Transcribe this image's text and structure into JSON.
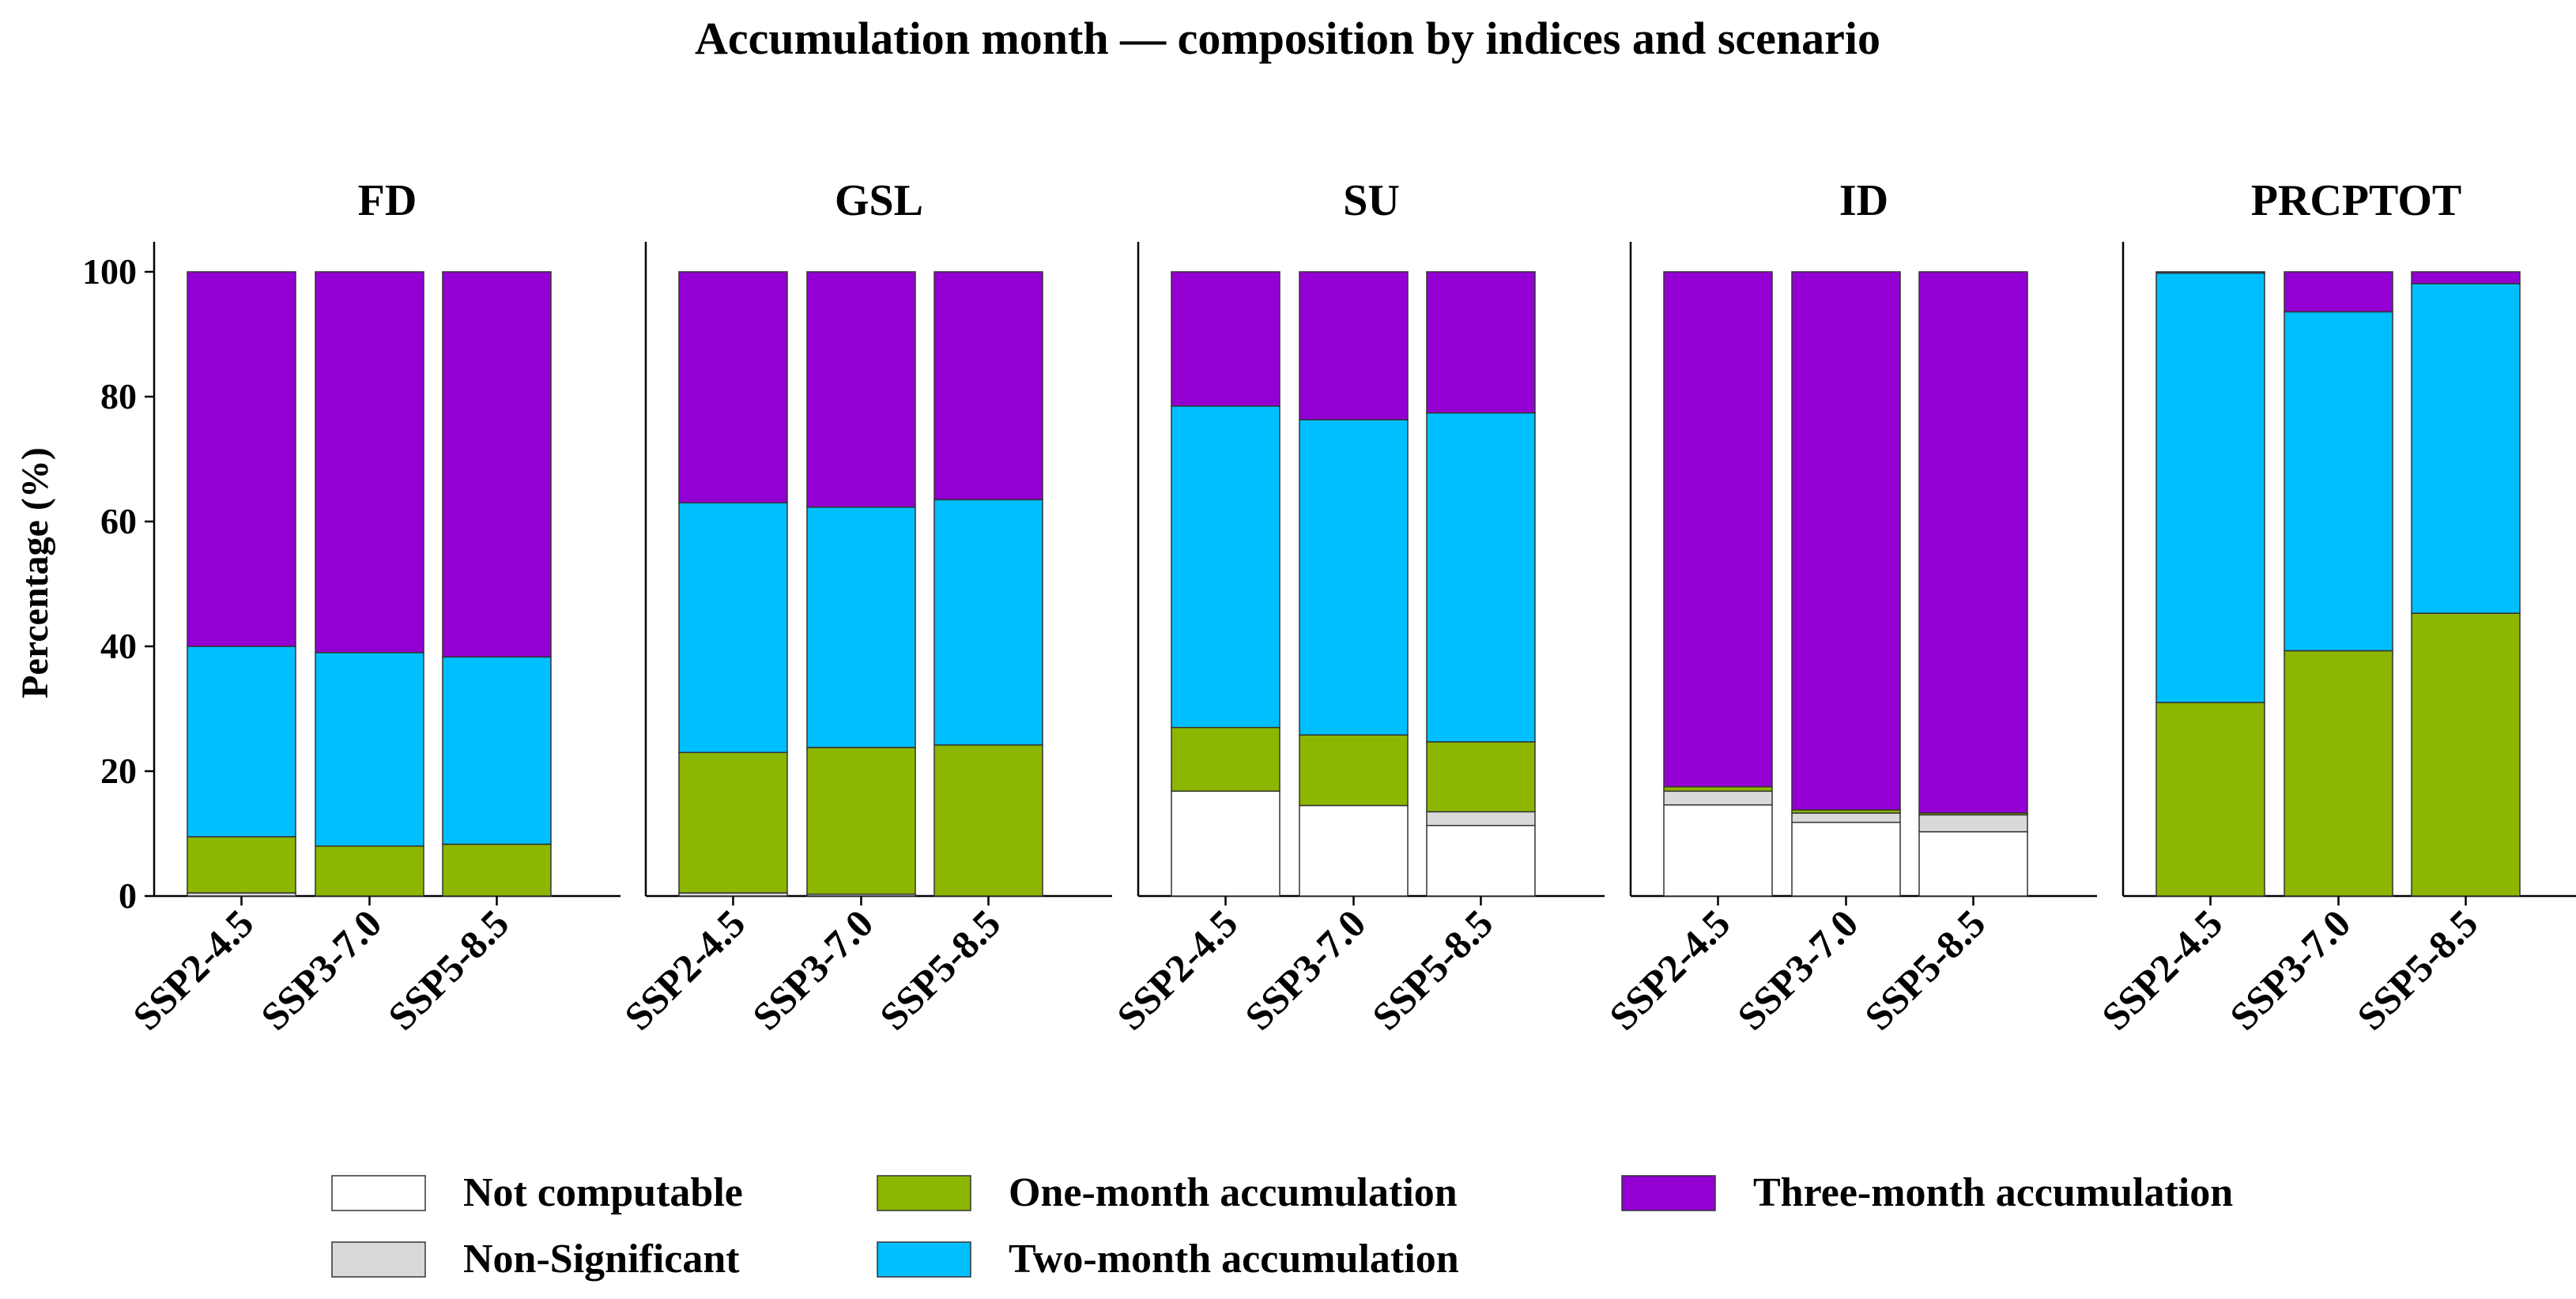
{
  "chart_data": {
    "type": "bar",
    "stacked": true,
    "title": "Accumulation month — composition by indices and scenario",
    "ylabel": "Percentage (%)",
    "ylim": [
      0,
      100
    ],
    "yticks": [
      "0",
      "20",
      "40",
      "60",
      "80",
      "100"
    ],
    "categories": [
      "SSP2-4.5",
      "SSP3-7.0",
      "SSP5-8.5"
    ],
    "legend_position": "bottom",
    "series_meta": [
      {
        "name": "Not computable",
        "color": "#ffffff"
      },
      {
        "name": "Non-Significant",
        "color": "#d9d9d9"
      },
      {
        "name": "One-month accumulation",
        "color": "#8db600"
      },
      {
        "name": "Two-month accumulation",
        "color": "#00bfff"
      },
      {
        "name": "Three-month accumulation",
        "color": "#9400d3"
      }
    ],
    "panels": [
      {
        "title": "FD",
        "values": [
          [
            0.0,
            0.5,
            9.0,
            30.5,
            60.0
          ],
          [
            0.0,
            0.0,
            8.0,
            31.0,
            61.0
          ],
          [
            0.0,
            0.0,
            8.3,
            30.0,
            61.7
          ]
        ]
      },
      {
        "title": "GSL",
        "values": [
          [
            0.0,
            0.5,
            22.5,
            40.0,
            37.0
          ],
          [
            0.0,
            0.3,
            23.5,
            38.5,
            37.7
          ],
          [
            0.0,
            0.0,
            24.2,
            39.3,
            36.5
          ]
        ]
      },
      {
        "title": "SU",
        "values": [
          [
            16.8,
            0.0,
            10.2,
            51.5,
            21.5
          ],
          [
            14.5,
            0.0,
            11.3,
            50.5,
            23.7
          ],
          [
            11.3,
            2.2,
            11.2,
            52.7,
            22.6
          ]
        ]
      },
      {
        "title": "ID",
        "values": [
          [
            14.6,
            2.2,
            0.7,
            0.0,
            82.5
          ],
          [
            11.8,
            1.5,
            0.5,
            0.0,
            86.2
          ],
          [
            10.3,
            2.7,
            0.3,
            0.0,
            86.7
          ]
        ]
      },
      {
        "title": "PRCPTOT",
        "values": [
          [
            0.0,
            0.0,
            31.0,
            68.8,
            0.2
          ],
          [
            0.0,
            0.0,
            39.3,
            54.3,
            6.4
          ],
          [
            0.0,
            0.0,
            45.3,
            52.8,
            1.9
          ]
        ]
      }
    ]
  }
}
